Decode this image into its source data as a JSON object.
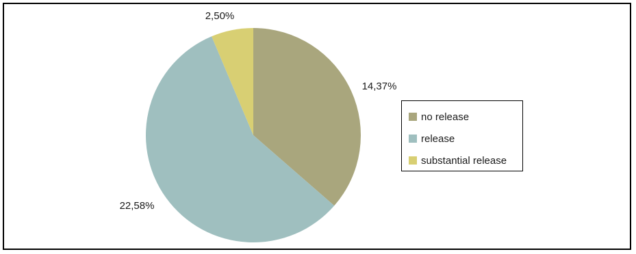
{
  "chart_data": {
    "type": "pie",
    "categories": [
      "no release",
      "release",
      "substantial release"
    ],
    "values": [
      14.37,
      22.58,
      2.5
    ],
    "data_labels": [
      "14,37%",
      "22,58%",
      "2,50%"
    ],
    "colors": [
      "#a9a67d",
      "#9fbfbf",
      "#d8cf73"
    ],
    "legend": "right",
    "start_angle_deg": 0,
    "direction": "clockwise"
  }
}
